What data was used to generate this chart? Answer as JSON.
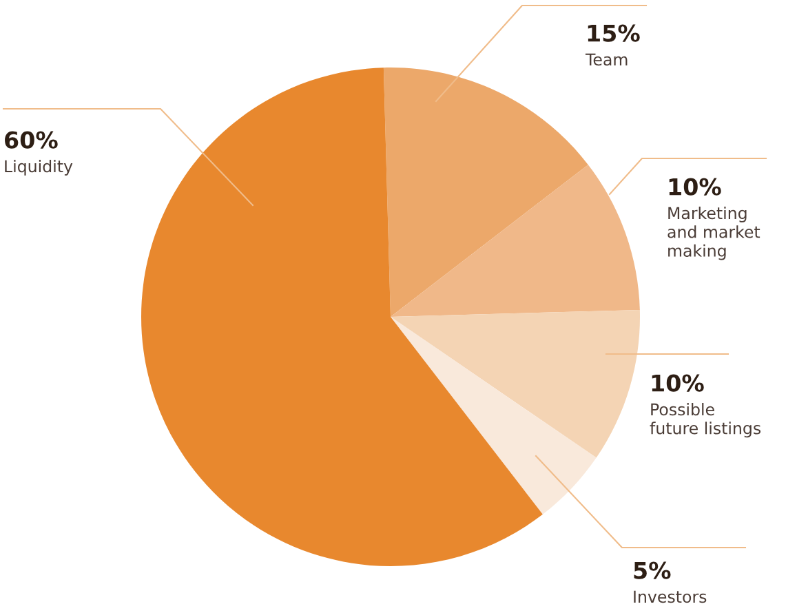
{
  "chart_data": {
    "type": "pie",
    "categories": [
      "Team",
      "Marketing\nand market\nmaking",
      "Possible\nfuture listings",
      "Investors",
      "Liquidity"
    ],
    "values": [
      15,
      10,
      10,
      5,
      60
    ],
    "value_labels": [
      "15%",
      "10%",
      "10%",
      "5%",
      "60%"
    ],
    "colors": [
      "#eca86a",
      "#f0b889",
      "#f4d4b4",
      "#f9e9db",
      "#e8882e"
    ]
  }
}
